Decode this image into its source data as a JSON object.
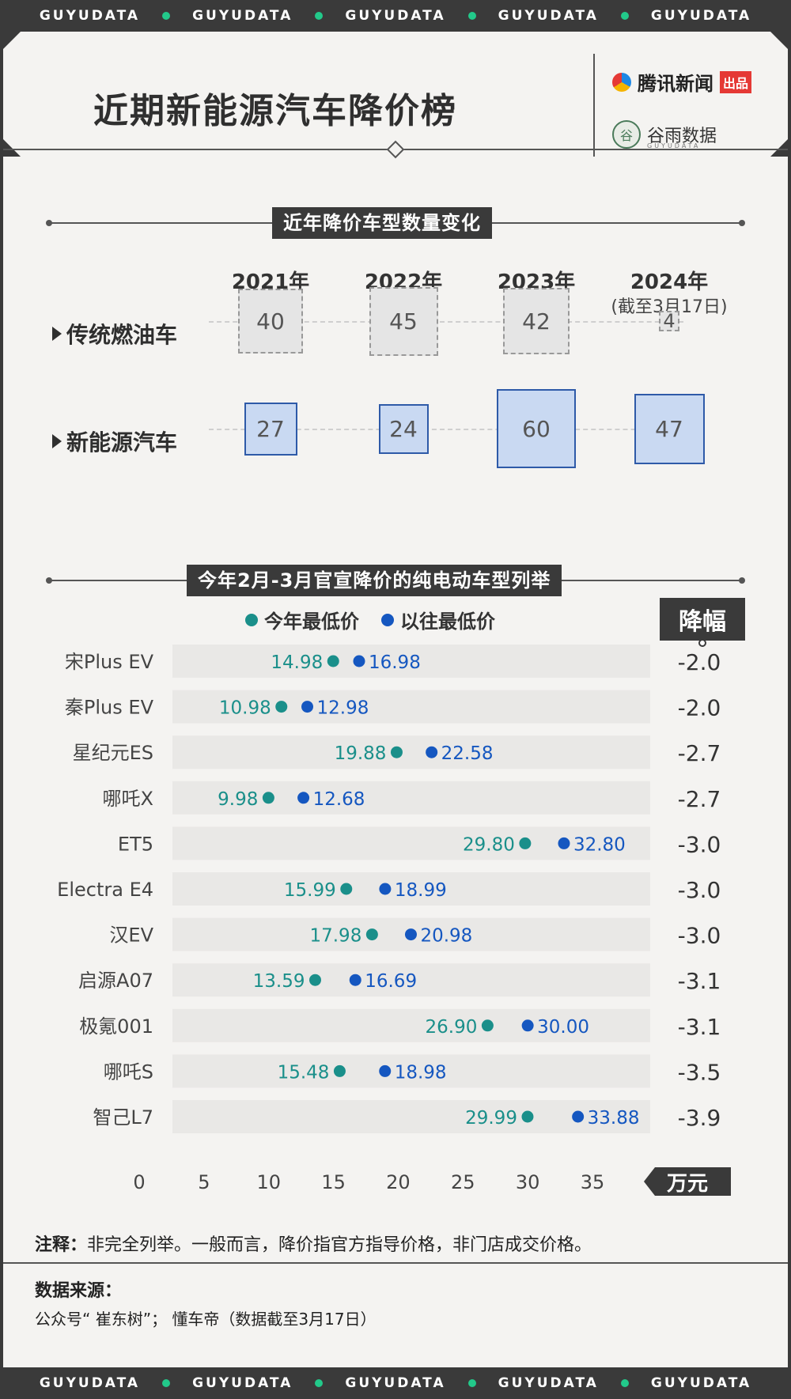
{
  "banner": [
    "GUYUDATA",
    "GUYUDATA",
    "GUYUDATA",
    "GUYUDATA",
    "GUYUDATA"
  ],
  "header": {
    "title": "近期新能源汽车降价榜",
    "brand_tencent": "腾讯新闻",
    "brand_tencent_tag": "出品",
    "brand_guyu": "谷雨数据",
    "brand_guyu_sub": "GUYUDATA",
    "brand_guyu_mark": "谷"
  },
  "section1": {
    "label": "近年降价车型数量变化",
    "years": [
      "2021年",
      "2022年",
      "2023年",
      "2024年"
    ],
    "year_note": "(截至3月17日)",
    "rows": [
      {
        "label": "传统燃油车",
        "values": [
          40,
          45,
          42,
          4
        ]
      },
      {
        "label": "新能源汽车",
        "values": [
          27,
          24,
          60,
          47
        ]
      }
    ]
  },
  "section2": {
    "label": "今年2月-3月官宣降价的纯电动车型列举",
    "legend_current": "今年最低价",
    "legend_previous": "以往最低价",
    "drop_header": "降幅",
    "unit": "万元",
    "colors": {
      "current": "#1a8f8a",
      "previous": "#1557c0",
      "band": "#e9e8e6"
    }
  },
  "chart_data": {
    "type": "scatter",
    "title": "今年2月-3月官宣降价的纯电动车型列举",
    "xlabel": "万元",
    "xlim": [
      0,
      38
    ],
    "xticks": [
      0,
      5,
      10,
      15,
      20,
      25,
      30,
      35
    ],
    "series_names": [
      "今年最低价",
      "以往最低价"
    ],
    "rows": [
      {
        "model": "宋Plus EV",
        "current": 14.98,
        "previous": 16.98,
        "drop": "-2.0"
      },
      {
        "model": "秦Plus EV",
        "current": 10.98,
        "previous": 12.98,
        "drop": "-2.0"
      },
      {
        "model": "星纪元ES",
        "current": 19.88,
        "previous": 22.58,
        "drop": "-2.7"
      },
      {
        "model": "哪吒X",
        "current": 9.98,
        "previous": 12.68,
        "drop": "-2.7"
      },
      {
        "model": "ET5",
        "current": 29.8,
        "previous": 32.8,
        "drop": "-3.0"
      },
      {
        "model": "Electra E4",
        "current": 15.99,
        "previous": 18.99,
        "drop": "-3.0"
      },
      {
        "model": "汉EV",
        "current": 17.98,
        "previous": 20.98,
        "drop": "-3.0"
      },
      {
        "model": "启源A07",
        "current": 13.59,
        "previous": 16.69,
        "drop": "-3.1"
      },
      {
        "model": "极氪001",
        "current": 26.9,
        "previous": 30.0,
        "drop": "-3.1"
      },
      {
        "model": "哪吒S",
        "current": 15.48,
        "previous": 18.98,
        "drop": "-3.5"
      },
      {
        "model": "智己L7",
        "current": 29.99,
        "previous": 33.88,
        "drop": "-3.9"
      }
    ]
  },
  "footer": {
    "note_label": "注释：",
    "note_text": "非完全列举。一般而言，降价指官方指导价格，非门店成交价格。",
    "source_title": "数据来源：",
    "source_text": "公众号“ 崔东树”； 懂车帝（数据截至3月17日）"
  }
}
